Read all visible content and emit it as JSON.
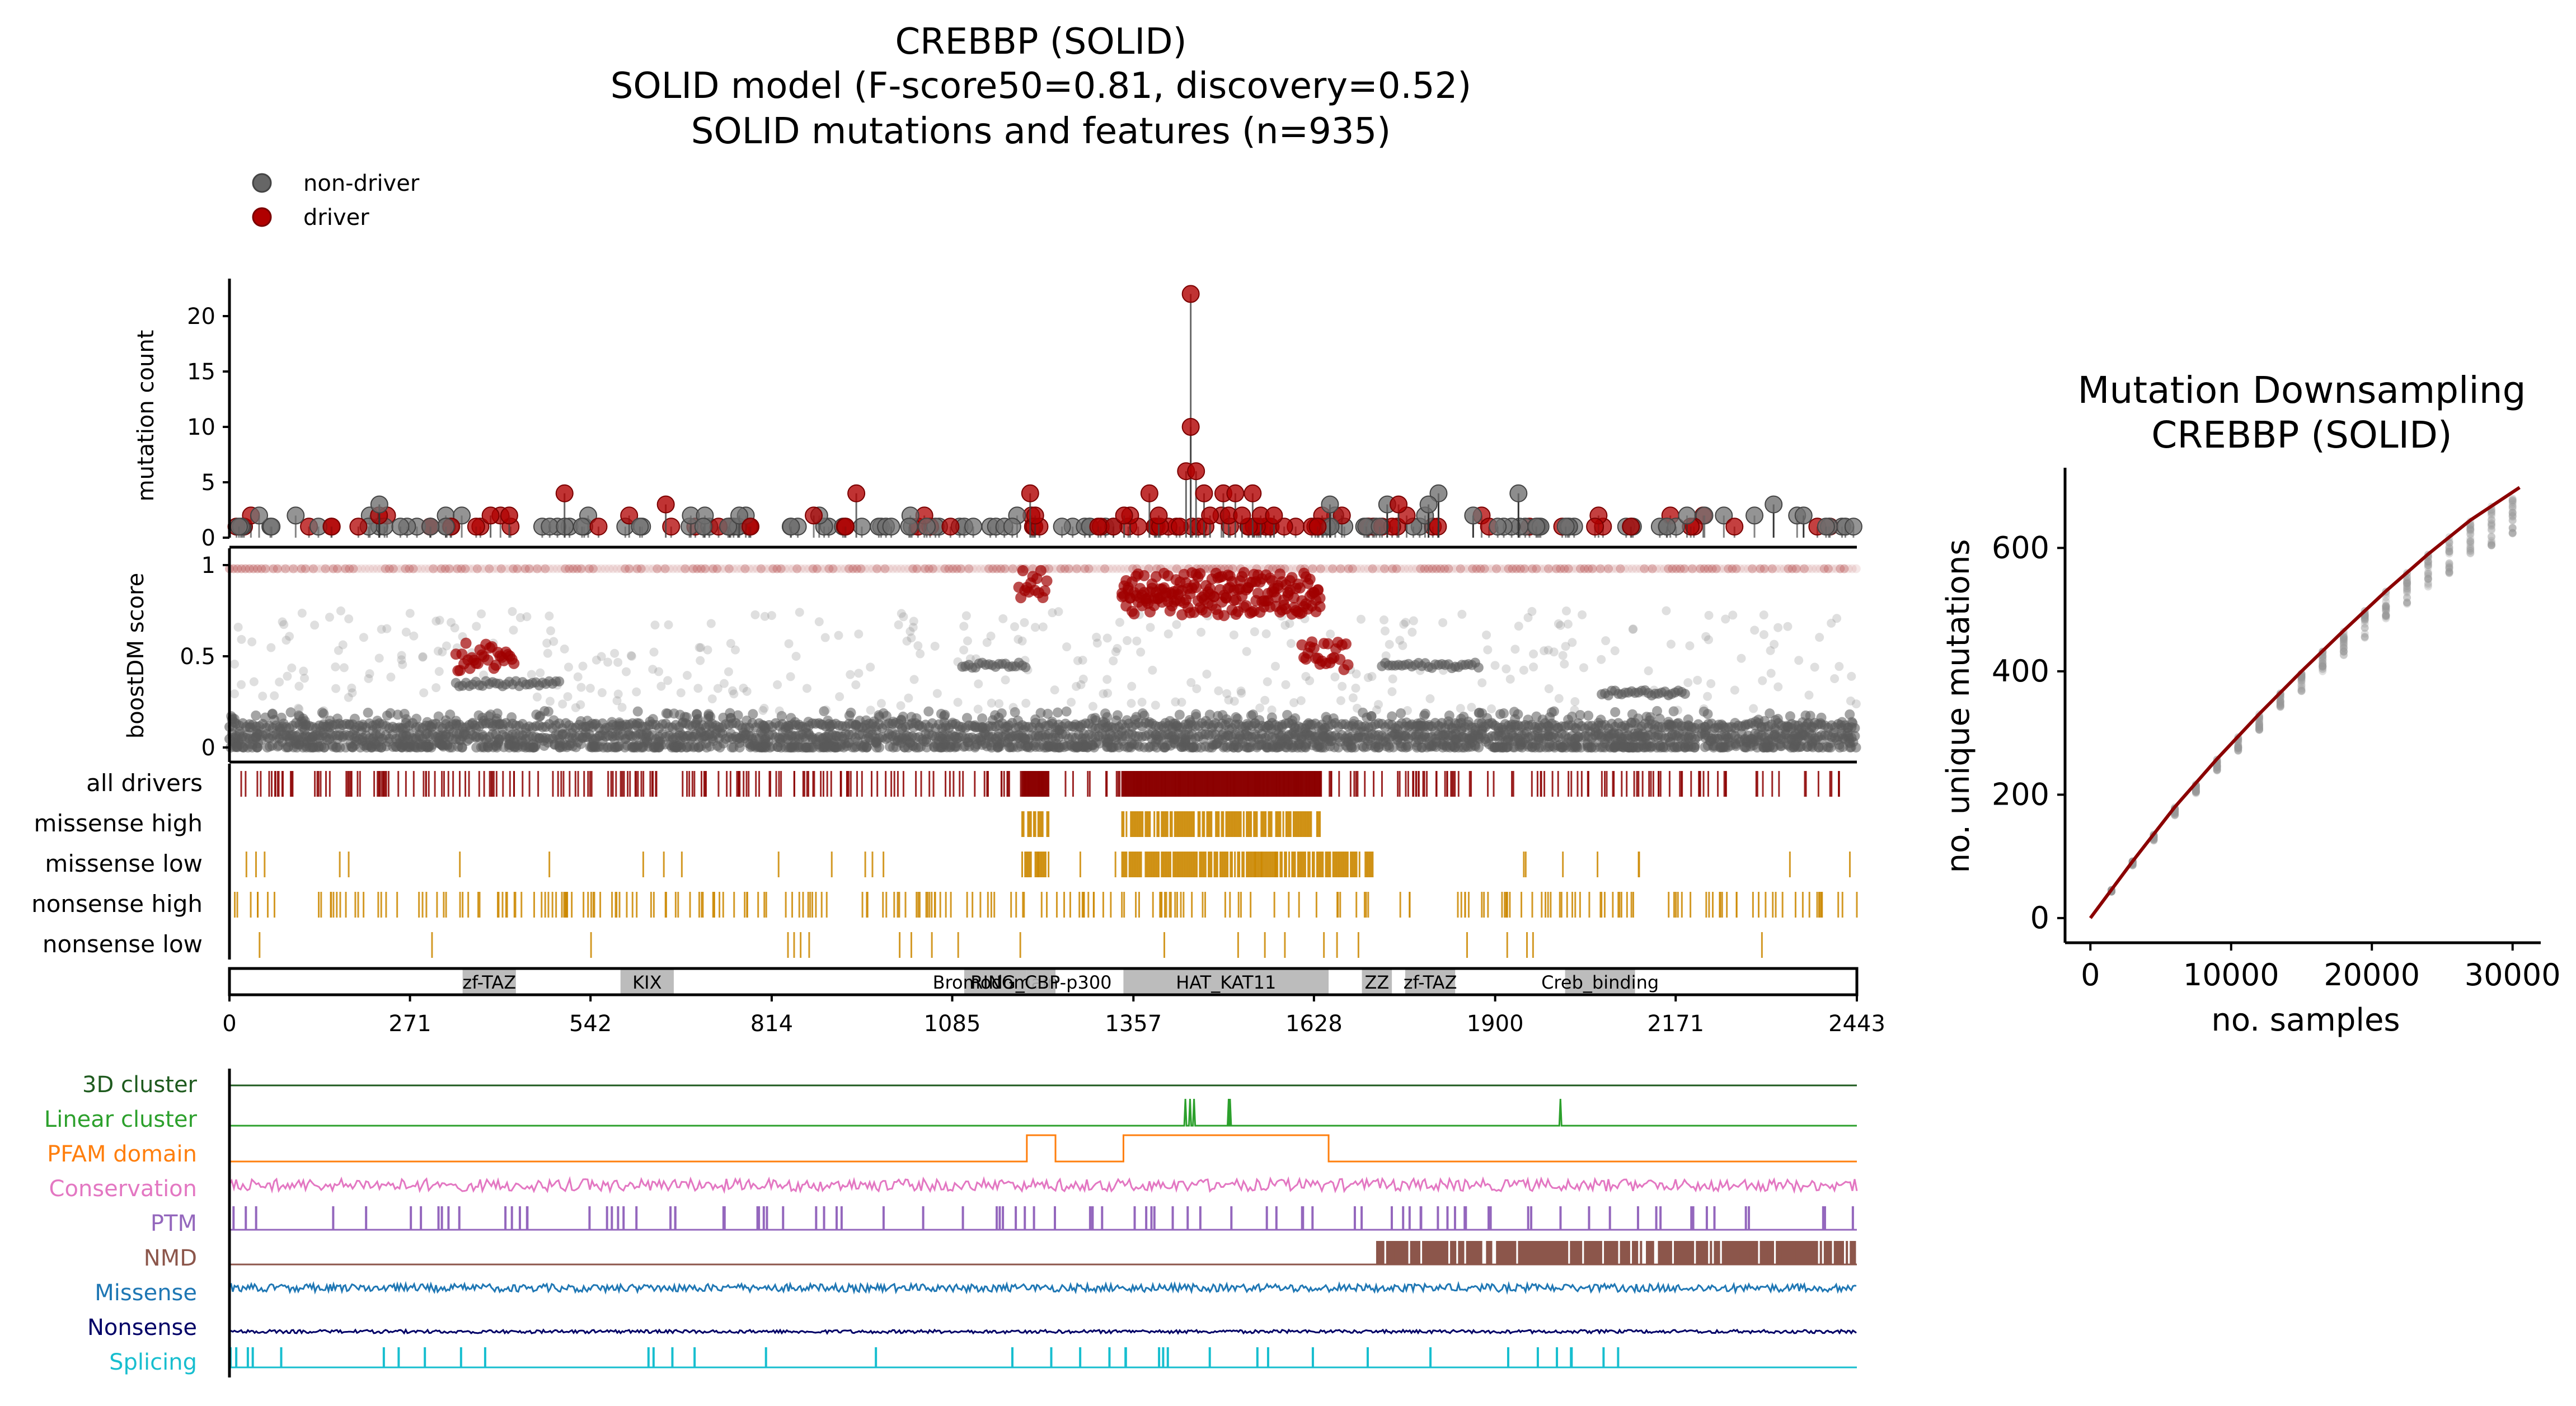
{
  "title_lines": [
    "CREBBP (SOLID)",
    "SOLID model (F-score50=0.81, discovery=0.52)",
    "SOLID mutations and features (n=935)"
  ],
  "legend": [
    {
      "name": "non-driver",
      "color": "#666666"
    },
    {
      "name": "driver",
      "color": "#b00000"
    }
  ],
  "colors": {
    "driver": "#8b0000",
    "non_driver": "#666666",
    "track": "#cc8800",
    "domain_fill": "#b5b5b5",
    "downsampling_line": "#8b0000",
    "downsampling_points": "#999999"
  },
  "chart_data": [
    {
      "type": "lollipop",
      "id": "mutation-count",
      "ylabel": "mutation count",
      "ylim": [
        0,
        23
      ],
      "yticks": [
        0,
        5,
        10,
        15,
        20
      ],
      "xlim": [
        0,
        2443
      ],
      "driver_peaks": [
        {
          "x": 1443,
          "y": 22
        },
        {
          "x": 1443,
          "y": 10
        },
        {
          "x": 1436,
          "y": 6
        },
        {
          "x": 1451,
          "y": 6
        },
        {
          "x": 1381,
          "y": 4
        },
        {
          "x": 1463,
          "y": 4
        },
        {
          "x": 1492,
          "y": 4
        },
        {
          "x": 1510,
          "y": 4
        },
        {
          "x": 1536,
          "y": 4
        },
        {
          "x": 1202,
          "y": 4
        },
        {
          "x": 503,
          "y": 4
        },
        {
          "x": 941,
          "y": 4
        },
        {
          "x": 655,
          "y": 3
        },
        {
          "x": 1755,
          "y": 3
        },
        {
          "x": 1343,
          "y": 2
        },
        {
          "x": 1395,
          "y": 2
        },
        {
          "x": 1472,
          "y": 2
        },
        {
          "x": 1500,
          "y": 2
        },
        {
          "x": 1520,
          "y": 2
        },
        {
          "x": 1548,
          "y": 2
        },
        {
          "x": 1568,
          "y": 2
        },
        {
          "x": 392,
          "y": 2
        },
        {
          "x": 420,
          "y": 2
        }
      ],
      "non_driver_peaks": [
        {
          "x": 225,
          "y": 3
        },
        {
          "x": 1652,
          "y": 3
        },
        {
          "x": 1815,
          "y": 4
        },
        {
          "x": 1800,
          "y": 3
        },
        {
          "x": 1935,
          "y": 4
        },
        {
          "x": 2318,
          "y": 3
        },
        {
          "x": 1738,
          "y": 3
        },
        {
          "x": 1867,
          "y": 2
        },
        {
          "x": 2363,
          "y": 2
        }
      ]
    },
    {
      "type": "scatter",
      "id": "boostdm-score",
      "ylabel": "boostDM score",
      "ylim": [
        0,
        1
      ],
      "yticks": [
        0,
        0.5,
        1
      ],
      "ytick_labels": [
        "0",
        "0.5",
        "1"
      ],
      "xlim": [
        0,
        2443
      ],
      "driver_bands": [
        {
          "x0": 0,
          "x1": 2443,
          "y": 0.98
        },
        {
          "x0": 1185,
          "x1": 1230,
          "y": 0.9
        },
        {
          "x0": 1340,
          "x1": 1640,
          "y": 0.88
        },
        {
          "x0": 1340,
          "x1": 1640,
          "y": 0.8
        },
        {
          "x0": 340,
          "x1": 430,
          "y": 0.5
        },
        {
          "x0": 1610,
          "x1": 1680,
          "y": 0.5
        }
      ],
      "non_driver_bands": [
        {
          "x0": 0,
          "x1": 2443,
          "y": 0.06
        },
        {
          "x0": 0,
          "x1": 2443,
          "y": 0.12
        },
        {
          "x0": 340,
          "x1": 500,
          "y": 0.35
        },
        {
          "x0": 1100,
          "x1": 1200,
          "y": 0.45
        },
        {
          "x0": 1730,
          "x1": 1880,
          "y": 0.45
        },
        {
          "x0": 2060,
          "x1": 2190,
          "y": 0.3
        }
      ]
    },
    {
      "type": "table",
      "id": "mutation-tracks",
      "tracks": [
        {
          "label": "all drivers",
          "color": "#8b0000",
          "density": 0.55,
          "dense_ranges": [
            [
              1190,
              1230
            ],
            [
              1340,
              1640
            ]
          ]
        },
        {
          "label": "missense high",
          "color": "#cc8800",
          "density": 0.0,
          "dense_ranges": [
            [
              1190,
              1230
            ],
            [
              1340,
              1640
            ]
          ]
        },
        {
          "label": "missense low",
          "color": "#cc8800",
          "density": 0.05,
          "dense_ranges": [
            [
              1190,
              1230
            ],
            [
              1340,
              1720
            ]
          ]
        },
        {
          "label": "nonsense high",
          "color": "#cc8800",
          "density": 0.42,
          "dense_ranges": []
        },
        {
          "label": "nonsense low",
          "color": "#cc8800",
          "density": 0.04,
          "dense_ranges": []
        }
      ]
    },
    {
      "type": "table",
      "id": "domains",
      "xlim": [
        0,
        2443
      ],
      "xticks": [
        0,
        271,
        542,
        814,
        1085,
        1357,
        1628,
        1900,
        2171,
        2443
      ],
      "domains": [
        {
          "name": "zf-TAZ",
          "start": 350,
          "end": 430
        },
        {
          "name": "KIX",
          "start": 587,
          "end": 667
        },
        {
          "name": "Bromodomain",
          "start": 1103,
          "end": 1197
        },
        {
          "name": "RING_CBP-p300",
          "start": 1197,
          "end": 1240
        },
        {
          "name": "HAT_KAT11",
          "start": 1342,
          "end": 1650
        },
        {
          "name": "ZZ",
          "start": 1700,
          "end": 1745
        },
        {
          "name": "zf-TAZ",
          "start": 1765,
          "end": 1840
        },
        {
          "name": "Creb_binding",
          "start": 2005,
          "end": 2110
        }
      ]
    },
    {
      "type": "line",
      "id": "feature-tracks",
      "xlim": [
        0,
        2443
      ],
      "features": [
        {
          "label": "3D cluster",
          "color": "#1e5a1e"
        },
        {
          "label": "Linear cluster",
          "color": "#2ca02c",
          "spikes": [
            1435,
            1442,
            1448,
            1500,
            1502,
            1998
          ]
        },
        {
          "label": "PFAM domain",
          "color": "#ff7f0e",
          "ranges": [
            [
              1197,
              1240
            ],
            [
              1342,
              1650
            ]
          ]
        },
        {
          "label": "Conservation",
          "color": "#e377c2"
        },
        {
          "label": "PTM",
          "color": "#9467bd"
        },
        {
          "label": "NMD",
          "color": "#8c564b",
          "range": [
            1720,
            2443
          ]
        },
        {
          "label": "Missense",
          "color": "#1f77b4"
        },
        {
          "label": "Nonsense",
          "color": "#000066"
        },
        {
          "label": "Splicing",
          "color": "#17becf"
        }
      ]
    },
    {
      "type": "line",
      "id": "downsampling",
      "title": "Mutation Downsampling\nCREBBP (SOLID)",
      "xlabel": "no. samples",
      "ylabel": "no. unique mutations",
      "xlim": [
        -1800,
        32000
      ],
      "ylim": [
        -40,
        730
      ],
      "xticks": [
        0,
        10000,
        20000,
        30000
      ],
      "yticks": [
        0,
        200,
        400,
        600
      ],
      "x": [
        0,
        3000,
        6000,
        9000,
        12000,
        15000,
        18000,
        21000,
        24000,
        27000,
        30500
      ],
      "y": [
        0,
        92,
        180,
        258,
        331,
        400,
        466,
        530,
        590,
        645,
        698
      ]
    }
  ]
}
